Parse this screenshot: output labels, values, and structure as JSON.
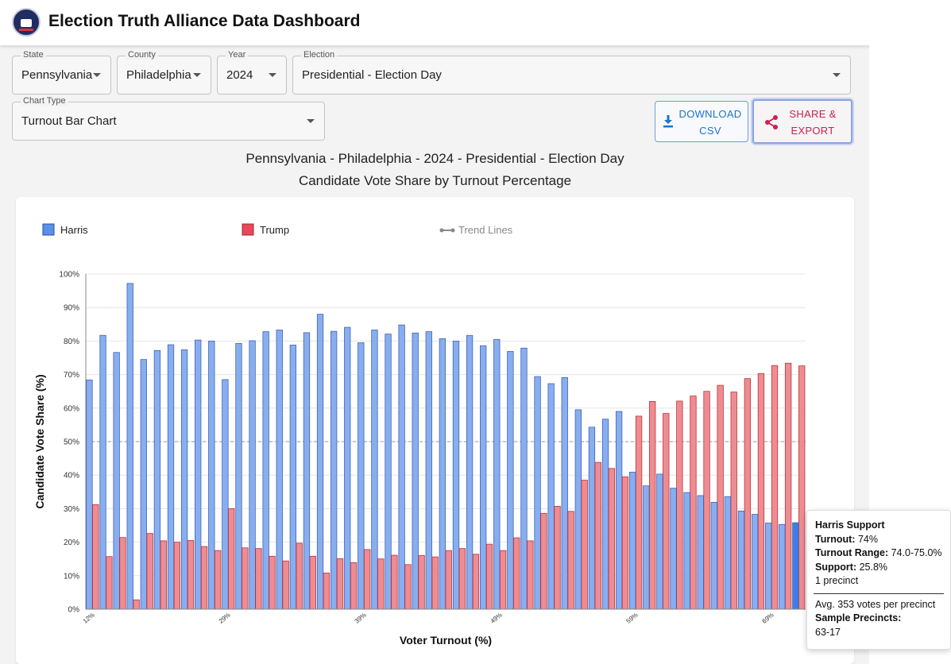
{
  "header": {
    "title": "Election Truth Alliance Data Dashboard"
  },
  "filters": {
    "state": {
      "label": "State",
      "value": "Pennsylvania"
    },
    "county": {
      "label": "County",
      "value": "Philadelphia"
    },
    "year": {
      "label": "Year",
      "value": "2024"
    },
    "election": {
      "label": "Election",
      "value": "Presidential - Election Day"
    },
    "chart_type": {
      "label": "Chart Type",
      "value": "Turnout Bar Chart"
    }
  },
  "buttons": {
    "download": "DOWNLOAD\nCSV",
    "share": "SHARE &\nEXPORT"
  },
  "colors": {
    "harris": "#88aef0",
    "harris_stroke": "#3f64b3",
    "trump": "#ee8c92",
    "trump_stroke": "#b8353c",
    "harris_highlight": "#3f7ee8"
  },
  "chart_data": {
    "type": "bar",
    "title": "Pennsylvania - Philadelphia - 2024 - Presidential - Election Day",
    "subtitle": "Candidate Vote Share by Turnout Percentage",
    "xlabel": "Voter Turnout (%)",
    "ylabel": "Candidate Vote Share (%)",
    "ylim": [
      0,
      100
    ],
    "yticks": [
      "0%",
      "10%",
      "20%",
      "30%",
      "40%",
      "50%",
      "60%",
      "70%",
      "80%",
      "90%",
      "100%"
    ],
    "reference_line": 50,
    "grid": true,
    "legend": [
      "Harris",
      "Trump",
      "Trend Lines"
    ],
    "legend_position": "top",
    "xtick_labels": [
      {
        "index": 0,
        "label": "12%"
      },
      {
        "index": 10,
        "label": "29%"
      },
      {
        "index": 20,
        "label": "39%"
      },
      {
        "index": 30,
        "label": "49%"
      },
      {
        "index": 40,
        "label": "59%"
      },
      {
        "index": 50,
        "label": "69%"
      }
    ],
    "series": [
      {
        "name": "Harris",
        "values": [
          68.4,
          81.7,
          76.6,
          97.2,
          74.5,
          77.2,
          78.9,
          77.4,
          80.3,
          80.0,
          68.5,
          79.3,
          80.1,
          82.8,
          83.3,
          78.8,
          82.5,
          88.0,
          82.9,
          84.1,
          79.5,
          83.3,
          82.1,
          84.8,
          82.4,
          82.8,
          80.7,
          80.0,
          81.7,
          78.6,
          80.5,
          76.9,
          77.9,
          69.4,
          67.3,
          69.1,
          59.5,
          54.3,
          56.7,
          59.0,
          40.9,
          36.8,
          40.3,
          36.1,
          34.8,
          33.9,
          31.9,
          33.6,
          29.3,
          28.3,
          25.7,
          25.3,
          25.8
        ]
      },
      {
        "name": "Trump",
        "values": [
          31.2,
          15.7,
          21.4,
          2.8,
          22.6,
          20.4,
          20.0,
          20.5,
          18.7,
          17.5,
          30.0,
          18.3,
          18.1,
          15.8,
          14.4,
          19.7,
          15.8,
          10.8,
          15.1,
          13.9,
          17.8,
          15.0,
          16.1,
          13.3,
          16.0,
          15.6,
          17.5,
          18.1,
          16.4,
          19.4,
          17.5,
          21.3,
          20.4,
          28.6,
          30.7,
          29.2,
          38.5,
          43.8,
          42.0,
          39.5,
          57.6,
          62.0,
          58.4,
          62.1,
          63.6,
          65.0,
          66.8,
          64.8,
          68.8,
          70.3,
          72.7,
          73.4,
          72.6
        ]
      }
    ],
    "highlight_index": 52
  },
  "tooltip": {
    "title": "Harris Support",
    "turnout_label": "Turnout:",
    "turnout": "74%",
    "range_label": "Turnout Range:",
    "range": "74.0-75.0%",
    "support_label": "Support:",
    "support": "25.8%",
    "precincts": "1 precinct",
    "avg": "Avg. 353 votes per precinct",
    "sample_label": "Sample Precincts:",
    "sample": "63-17"
  }
}
